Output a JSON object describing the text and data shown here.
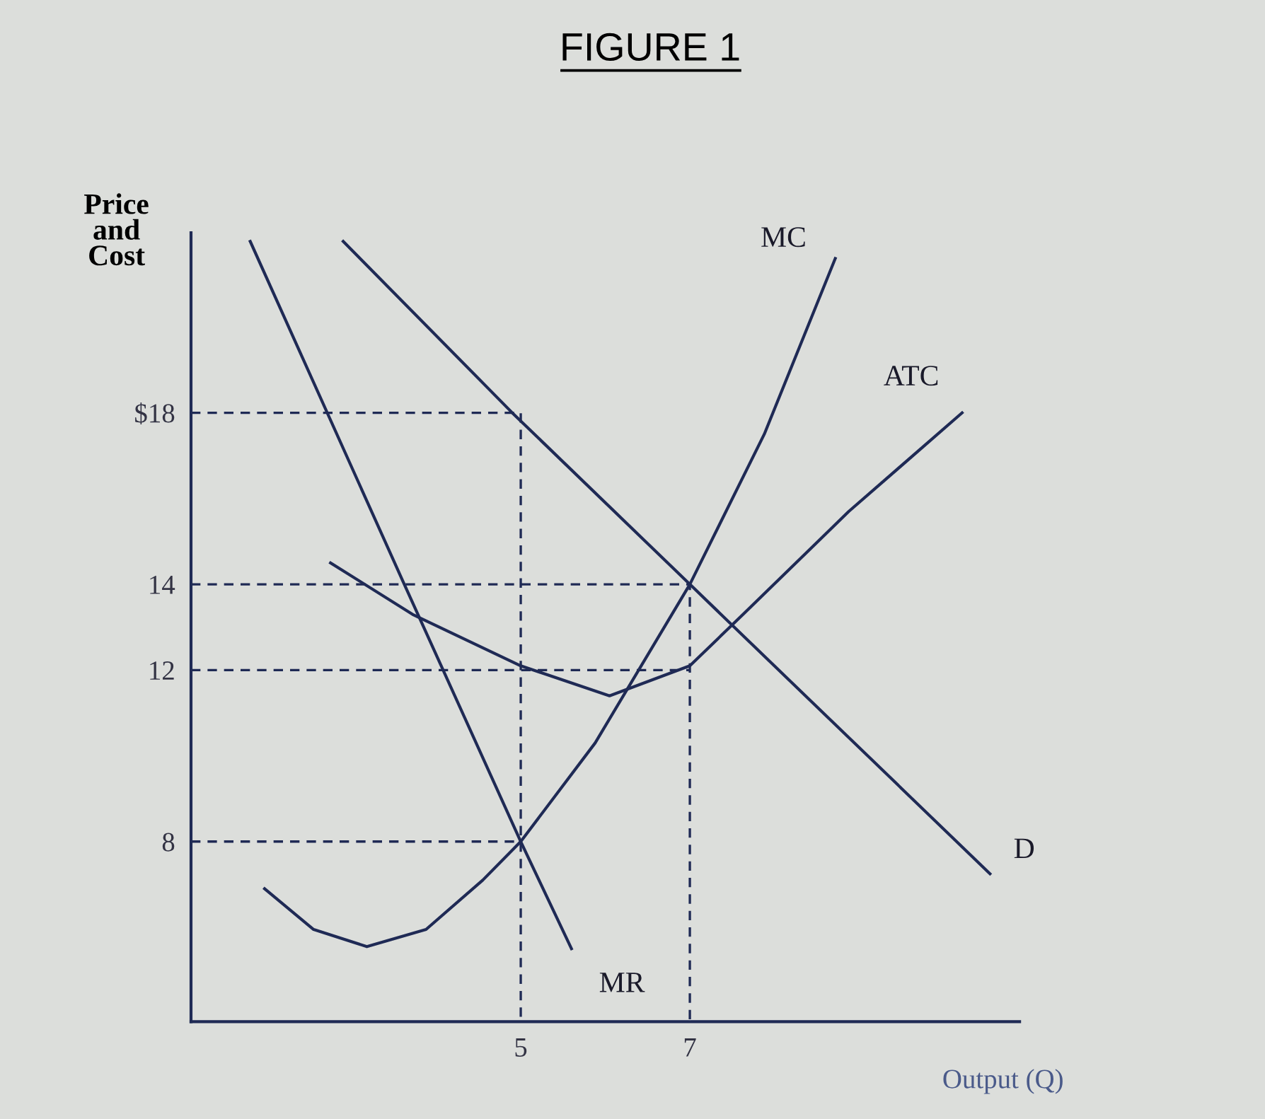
{
  "chart_data": {
    "type": "line",
    "title": "FIGURE 1",
    "xlabel": "Output (Q)",
    "ylabel": "Price\nand\nCost",
    "xlim": [
      1.1,
      10.9
    ],
    "ylim": [
      3.8,
      22.2
    ],
    "xticks": [
      5,
      7
    ],
    "yticks": [
      8,
      12,
      14,
      {
        "value": 18,
        "label": "$18"
      }
    ],
    "grid": false,
    "legend": false,
    "marker": "none",
    "series": [
      {
        "name": "D",
        "color": "#1f2a55",
        "x": [
          2.9,
          4.9,
          7,
          10.55
        ],
        "values": [
          22,
          18,
          14,
          7.25
        ]
      },
      {
        "name": "MR",
        "color": "#1f2a55",
        "x": [
          1.8,
          3.6,
          5,
          5.6
        ],
        "values": [
          22,
          14.1,
          8,
          5.5
        ]
      },
      {
        "name": "MC",
        "color": "#1f2a55",
        "x": [
          1.97,
          2.55,
          3.18,
          3.88,
          4.55,
          5,
          5.88,
          7,
          7.88,
          8.72
        ],
        "values": [
          6.9,
          5.95,
          5.55,
          5.95,
          7.1,
          8,
          10.3,
          14,
          17.5,
          21.6
        ]
      },
      {
        "name": "ATC",
        "color": "#1f2a55",
        "x": [
          2.75,
          3.72,
          5,
          6.05,
          7,
          7.63,
          8.88,
          10.22
        ],
        "values": [
          14.5,
          13.3,
          12.1,
          11.4,
          12.1,
          13.3,
          15.7,
          18
        ]
      },
      {
        "color": "#1f2a55",
        "line_style": "dashed",
        "x": [
          1.1,
          5,
          5
        ],
        "values": [
          18,
          18,
          3.8
        ]
      },
      {
        "color": "#1f2a55",
        "line_style": "dashed",
        "x": [
          1.1,
          7,
          7
        ],
        "values": [
          14,
          14,
          3.8
        ]
      },
      {
        "color": "#1f2a55",
        "line_style": "dashed",
        "x": [
          1.1,
          7
        ],
        "values": [
          12,
          12
        ]
      },
      {
        "color": "#1f2a55",
        "line_style": "dashed",
        "x": [
          1.1,
          5
        ],
        "values": [
          8,
          8
        ]
      }
    ]
  }
}
